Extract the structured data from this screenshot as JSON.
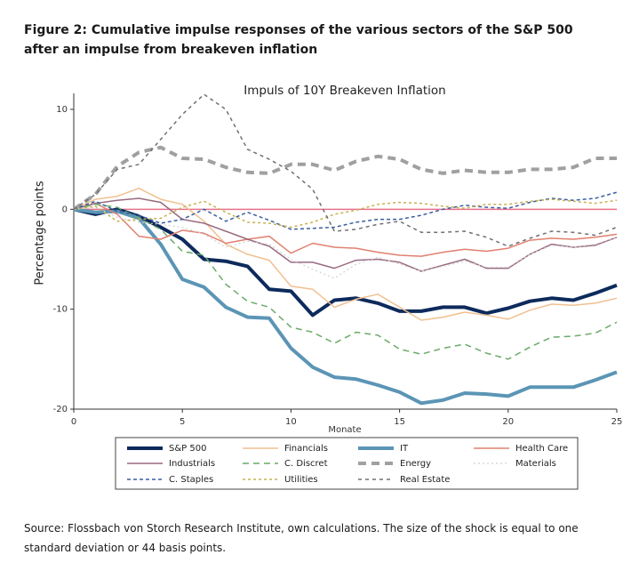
{
  "figure_title": "Figure 2: Cumulative impulse responses of the various sectors of the S&P 500 after an impulse from breakeven inflation",
  "source": "Source: Flossbach von Storch Research Institute, own calculations. The size of the shock is equal to one standard deviation or 44 basis points.",
  "chart_data": {
    "type": "line",
    "title": "Impuls of 10Y Breakeven Inflation",
    "x_label": "Monate",
    "y_label": "Percentage points",
    "x": [
      0,
      1,
      2,
      3,
      4,
      5,
      6,
      7,
      8,
      9,
      10,
      11,
      12,
      13,
      14,
      15,
      16,
      17,
      18,
      19,
      20,
      21,
      22,
      23,
      24,
      25
    ],
    "xlim": [
      0,
      25
    ],
    "ylim": [
      -20,
      11.6
    ],
    "xticks": [
      0,
      5,
      10,
      15,
      20,
      25
    ],
    "yticks": [
      -20,
      -10,
      0,
      10
    ],
    "reference_line": {
      "value": 0,
      "color": "#e8708a"
    },
    "legend_columns": 4,
    "series": [
      {
        "name": "S&P 500",
        "color": "#0d2a5c",
        "width": 4,
        "dash": "solid",
        "values": [
          0,
          -0.5,
          0,
          -0.7,
          -1.8,
          -3,
          -5,
          -5.2,
          -5.7,
          -8,
          -8.2,
          -10.6,
          -9.1,
          -8.9,
          -9.4,
          -10.2,
          -10.2,
          -9.8,
          -9.8,
          -10.4,
          -9.9,
          -9.2,
          -8.9,
          -9.1,
          -8.4,
          -7.6
        ]
      },
      {
        "name": "Financials",
        "color": "#f0c090",
        "width": 1.5,
        "dash": "solid",
        "values": [
          0,
          1.0,
          1.3,
          2.1,
          1.0,
          0.5,
          -1.2,
          -3.5,
          -4.5,
          -5.1,
          -7.7,
          -8.0,
          -9.8,
          -9.0,
          -8.5,
          -9.8,
          -11.1,
          -10.8,
          -10.3,
          -10.6,
          -11,
          -10.1,
          -9.5,
          -9.6,
          -9.4,
          -8.9
        ]
      },
      {
        "name": "IT",
        "color": "#5b95b5",
        "width": 4,
        "dash": "solid",
        "values": [
          0,
          -0.3,
          -0.2,
          -0.9,
          -3.5,
          -7,
          -7.8,
          -9.8,
          -10.8,
          -10.9,
          -13.9,
          -15.8,
          -16.8,
          -17,
          -17.6,
          -18.3,
          -19.4,
          -19.1,
          -18.4,
          -18.5,
          -18.7,
          -17.8,
          -17.8,
          -17.8,
          -17.1,
          -16.3
        ]
      },
      {
        "name": "Health Care",
        "color": "#e08070",
        "width": 1.5,
        "dash": "solid",
        "values": [
          0,
          0.6,
          -0.5,
          -2.7,
          -3,
          -2.1,
          -2.4,
          -3.4,
          -3,
          -2.7,
          -4.4,
          -3.4,
          -3.8,
          -3.9,
          -4.3,
          -4.6,
          -4.7,
          -4.3,
          -4,
          -4.2,
          -3.9,
          -3.1,
          -2.9,
          -3.0,
          -2.8,
          -2.5
        ]
      },
      {
        "name": "Industrials",
        "color": "#9a6a80",
        "width": 1.5,
        "dash": "solid",
        "values": [
          0,
          0.6,
          0.9,
          1.1,
          0.7,
          -1,
          -1.4,
          -2.2,
          -3,
          -3.7,
          -5.3,
          -5.3,
          -5.9,
          -5.1,
          -5,
          -5.3,
          -6.2,
          -5.6,
          -5,
          -5.9,
          -5.9,
          -4.5,
          -3.5,
          -3.8,
          -3.6,
          -2.8
        ]
      },
      {
        "name": "C. Discret",
        "color": "#6aaa6a",
        "width": 1.5,
        "dash": "7 5",
        "values": [
          0,
          0.5,
          0.2,
          -0.9,
          -2.0,
          -4.2,
          -4.6,
          -7.5,
          -9.2,
          -9.8,
          -11.8,
          -12.3,
          -13.4,
          -12.3,
          -12.6,
          -14.0,
          -14.5,
          -13.9,
          -13.5,
          -14.4,
          -15.0,
          -13.8,
          -12.8,
          -12.7,
          -12.4,
          -11.3
        ]
      },
      {
        "name": "Energy",
        "color": "#a0a0a0",
        "width": 4,
        "dash": "9 6",
        "values": [
          0,
          1.5,
          4.3,
          5.7,
          6.2,
          5.1,
          5.0,
          4.2,
          3.7,
          3.6,
          4.5,
          4.5,
          3.9,
          4.8,
          5.3,
          5.0,
          4.0,
          3.6,
          3.9,
          3.7,
          3.7,
          4.0,
          4.0,
          4.2,
          5.1,
          5.1
        ]
      },
      {
        "name": "Materials",
        "color": "#d0d0d0",
        "width": 1.2,
        "dash": "2 3",
        "values": [
          0,
          0.2,
          -0.8,
          -1.3,
          -1.5,
          -1.8,
          -2.5,
          -3.8,
          -3.2,
          -3.5,
          -5,
          -6,
          -6.9,
          -5.5,
          -4.8,
          -5.5,
          -6.2,
          -5.7,
          -5.2,
          -5.8,
          -5.8,
          -4.5,
          -3.6,
          -3.8,
          -3.5,
          -2.8
        ]
      },
      {
        "name": "C. Staples",
        "color": "#3a5fa0",
        "width": 1.5,
        "dash": "4 3",
        "values": [
          0,
          0.8,
          -0.2,
          -0.6,
          -1.4,
          -1,
          0,
          -1.2,
          -0.3,
          -1.1,
          -2,
          -1.9,
          -1.8,
          -1.3,
          -1,
          -1,
          -0.6,
          0,
          0.4,
          0.2,
          0.1,
          0.7,
          1.1,
          0.9,
          1.1,
          1.7
        ]
      },
      {
        "name": "Utilities",
        "color": "#c8b050",
        "width": 1.5,
        "dash": "3 3",
        "values": [
          0,
          0.3,
          -1.2,
          -1.0,
          -0.9,
          0.2,
          0.8,
          -0.3,
          -1.3,
          -1.4,
          -1.8,
          -1.3,
          -0.5,
          -0.1,
          0.5,
          0.7,
          0.6,
          0.3,
          0.1,
          0.5,
          0.5,
          0.8,
          1.0,
          0.8,
          0.6,
          0.9
        ]
      },
      {
        "name": "Real Estate",
        "color": "#707070",
        "width": 1.5,
        "dash": "4 4",
        "values": [
          0,
          1.5,
          4.0,
          4.5,
          7.0,
          9.5,
          11.5,
          10,
          6,
          5,
          3.8,
          2,
          -2.2,
          -2,
          -1.5,
          -1.2,
          -2.3,
          -2.3,
          -2.2,
          -2.8,
          -3.7,
          -2.9,
          -2.2,
          -2.3,
          -2.6,
          -1.8
        ]
      }
    ]
  }
}
